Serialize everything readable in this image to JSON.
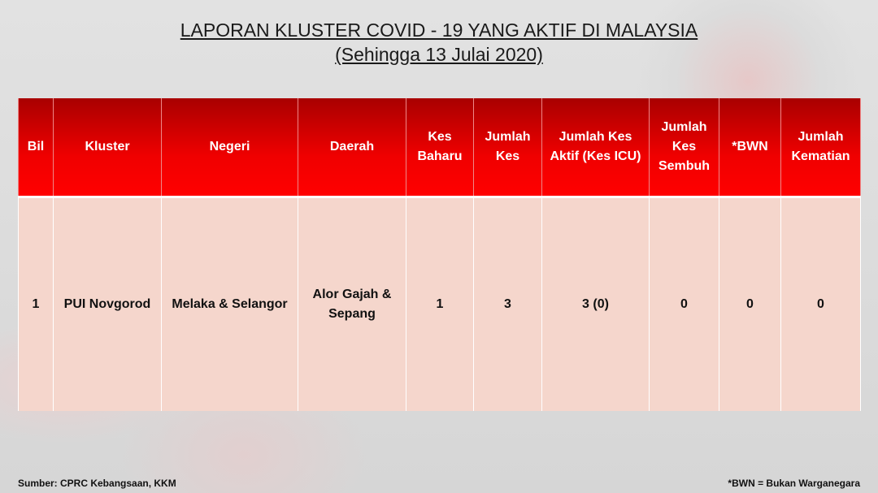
{
  "title": "LAPORAN KLUSTER COVID - 19 YANG AKTIF DI MALAYSIA",
  "subtitle": "(Sehingga 13 Julai 2020)",
  "table": {
    "headers": [
      "Bil",
      "Kluster",
      "Negeri",
      "Daerah",
      "Kes Baharu",
      "Jumlah Kes",
      "Jumlah Kes Aktif (Kes ICU)",
      "Jumlah Kes Sembuh",
      "*BWN",
      "Jumlah Kematian"
    ],
    "rows": [
      [
        "1",
        "PUI Novgorod",
        "Melaka & Selangor",
        "Alor Gajah & Sepang",
        "1",
        "3",
        "3 (0)",
        "0",
        "0",
        "0"
      ]
    ]
  },
  "footer": {
    "source": "Sumber: CPRC Kebangsaan, KKM",
    "note": "*BWN = Bukan Warganegara"
  },
  "colors": {
    "header": "#e00000",
    "body": "#f5d6cc"
  }
}
